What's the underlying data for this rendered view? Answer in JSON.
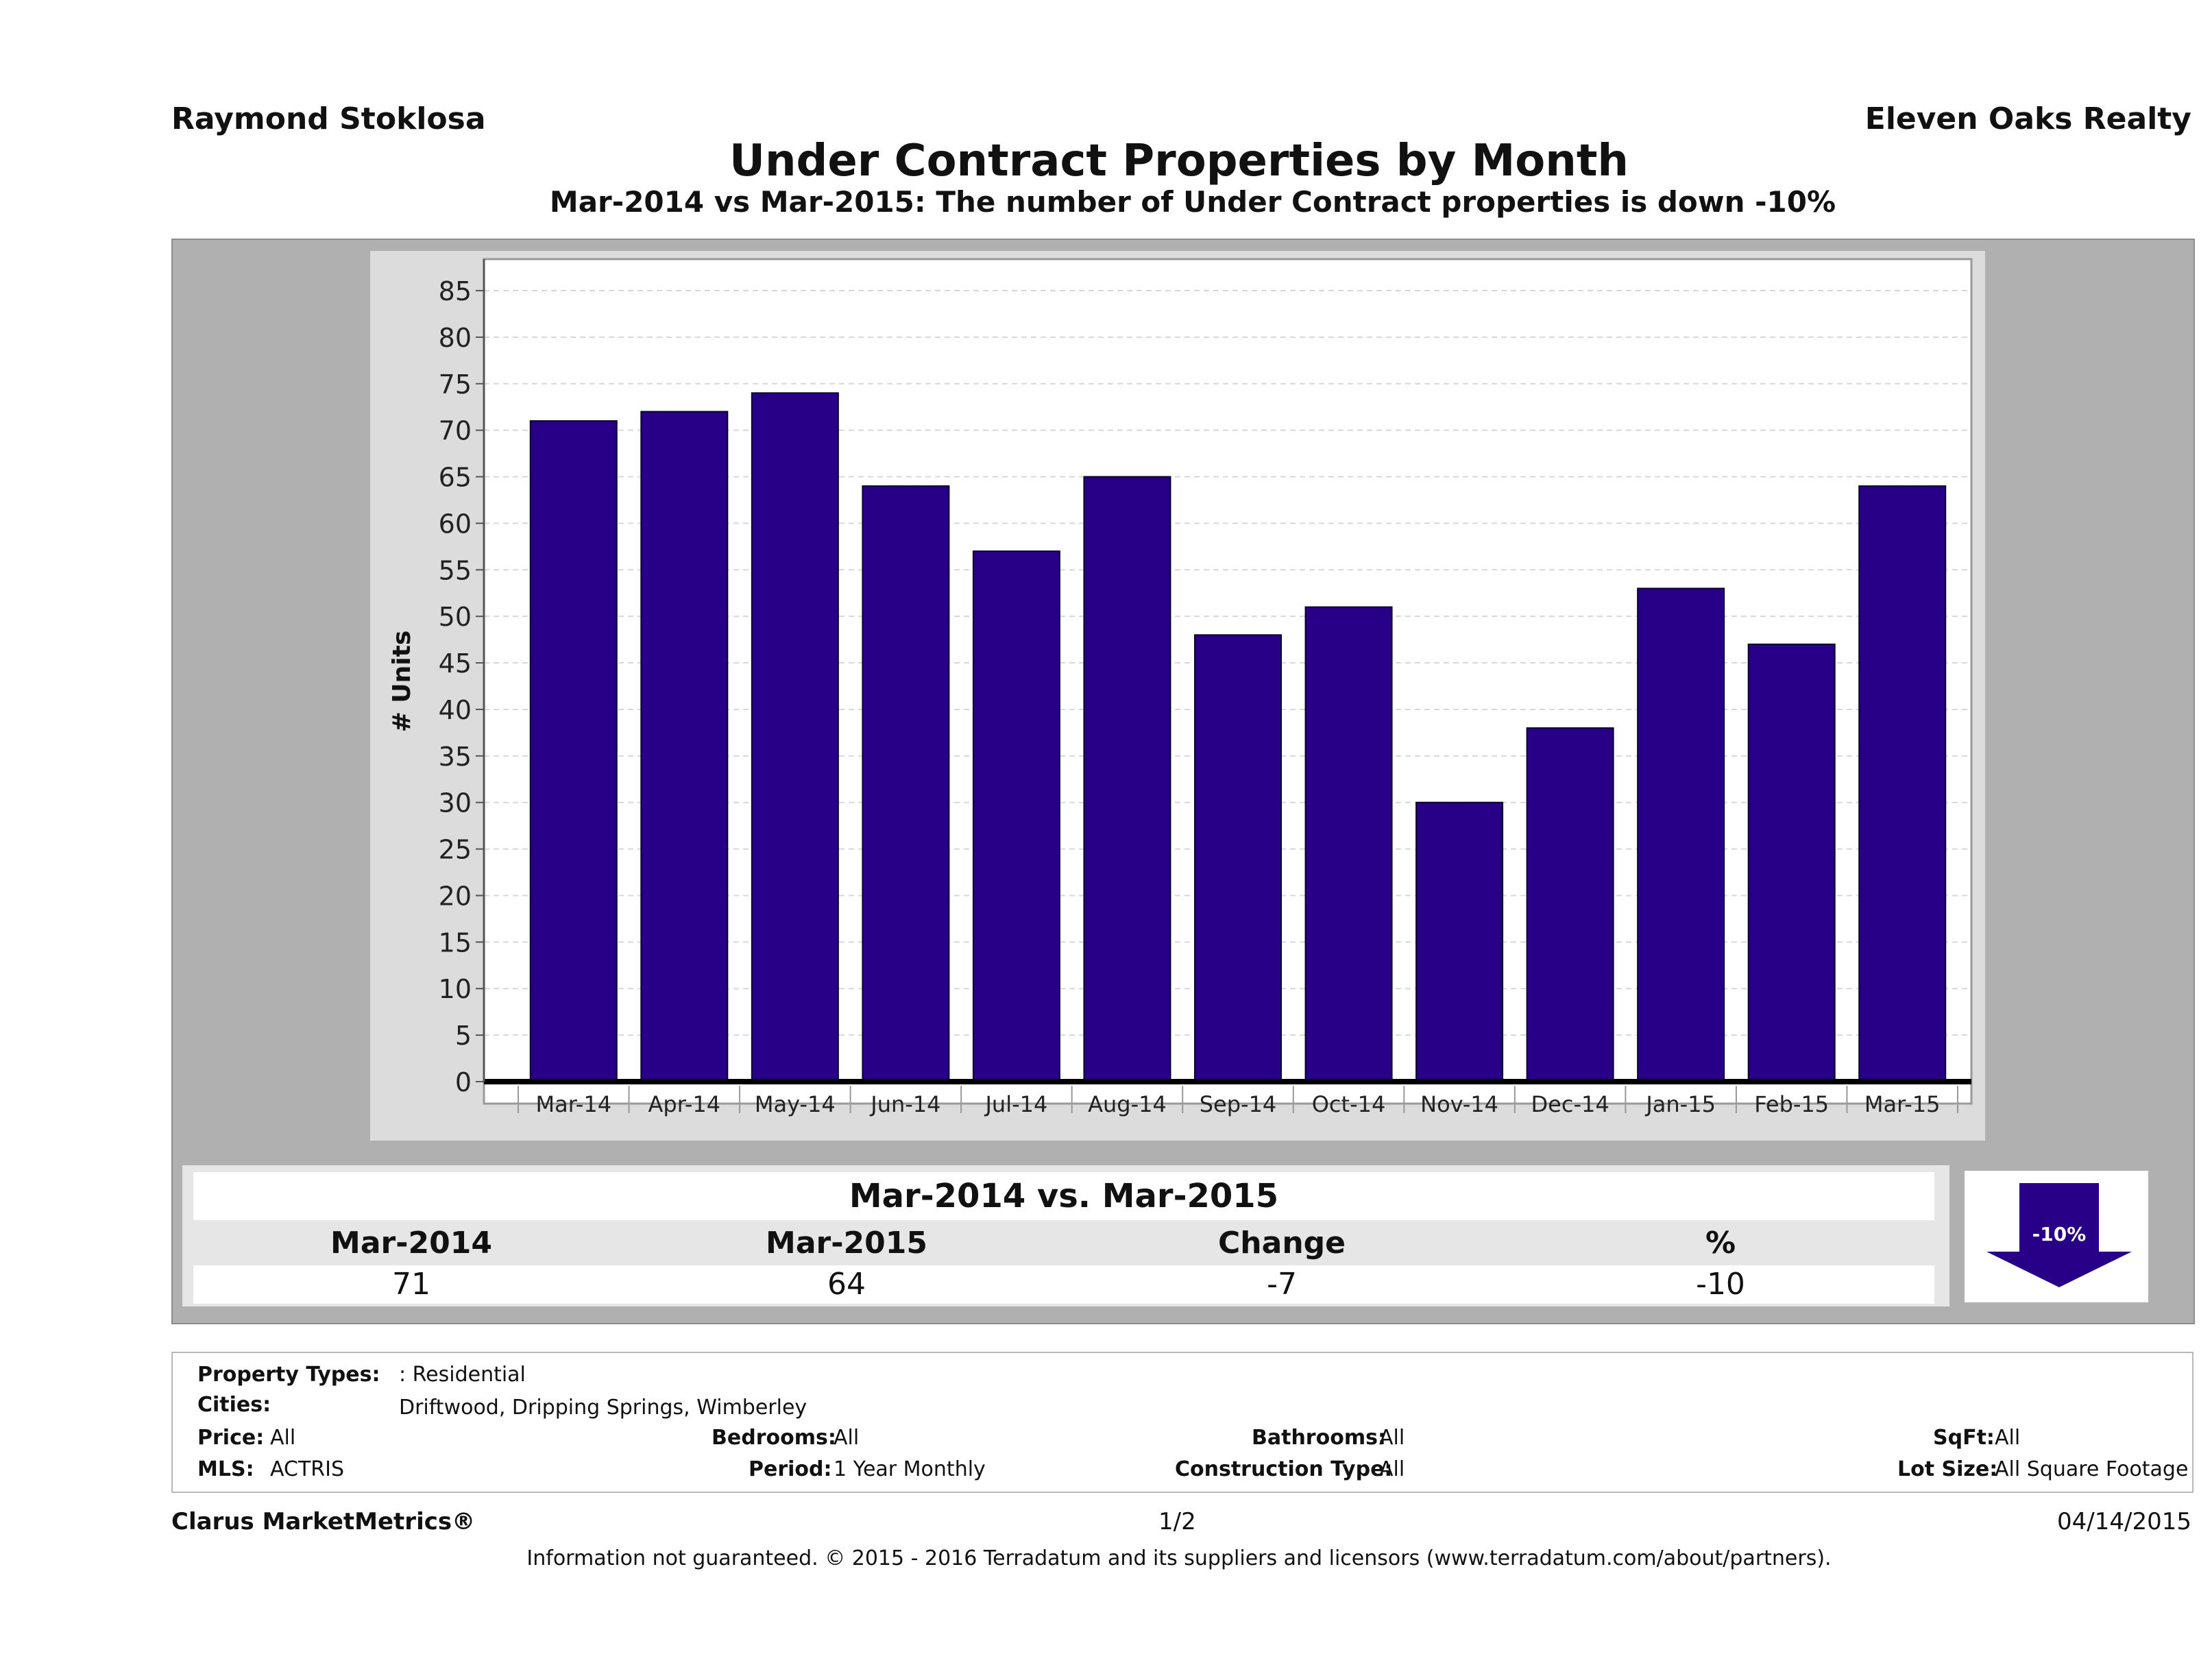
{
  "header": {
    "agent": "Raymond Stoklosa",
    "brokerage": "Eleven Oaks Realty"
  },
  "chart_data": {
    "type": "bar",
    "title": "Under Contract Properties by Month",
    "subtitle": "Mar-2014 vs Mar-2015: The number of Under Contract  properties is down -10%",
    "ylabel": "# Units",
    "xlabel": "",
    "ylim": [
      0,
      85
    ],
    "yticks": [
      0,
      5,
      10,
      15,
      20,
      25,
      30,
      35,
      40,
      45,
      50,
      55,
      60,
      65,
      70,
      75,
      80,
      85
    ],
    "grid": true,
    "categories": [
      "Mar-14",
      "Apr-14",
      "May-14",
      "Jun-14",
      "Jul-14",
      "Aug-14",
      "Sep-14",
      "Oct-14",
      "Nov-14",
      "Dec-14",
      "Jan-15",
      "Feb-15",
      "Mar-15"
    ],
    "values": [
      71,
      72,
      74,
      64,
      57,
      65,
      48,
      51,
      30,
      38,
      53,
      47,
      64
    ],
    "bar_color": "#280087"
  },
  "summary": {
    "title": "Mar-2014 vs. Mar-2015",
    "headers": [
      "Mar-2014",
      "Mar-2015",
      "Change",
      "%"
    ],
    "values": [
      "71",
      "64",
      "-7",
      "-10"
    ],
    "badge": "-10%",
    "badge_icon": "down-arrow-icon"
  },
  "filters": {
    "property_types_label": "Property Types:",
    "property_types_value": ": Residential",
    "cities_label": "Cities:",
    "cities_value": "Driftwood, Dripping Springs, Wimberley",
    "price_label": "Price:",
    "price_value": "All",
    "mls_label": "MLS:",
    "mls_value": "ACTRIS",
    "bedrooms_label": "Bedrooms:",
    "bedrooms_value": "All",
    "period_label": "Period:",
    "period_value": "1 Year Monthly",
    "bathrooms_label": "Bathrooms:",
    "bathrooms_value": "All",
    "construction_label": "Construction Type:",
    "construction_value": "All",
    "sqft_label": "SqFt:",
    "sqft_value": "All",
    "lot_label": "Lot Size:",
    "lot_value": "All Square Footage"
  },
  "footer": {
    "product": "Clarus MarketMetrics®",
    "page": "1/2",
    "date": "04/14/2015",
    "disclaimer": "Information not guaranteed. © 2015 - 2016 Terradatum and its suppliers and licensors (www.terradatum.com/about/partners)."
  }
}
